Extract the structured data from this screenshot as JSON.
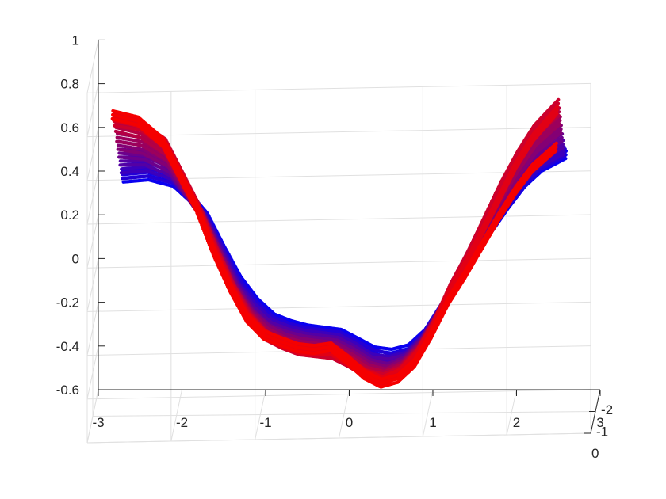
{
  "chart_data": {
    "type": "scatter",
    "title": "",
    "xlabel": "",
    "ylabel": "",
    "zlabel": "",
    "grid": true,
    "legend": "none",
    "xlim": [
      -3,
      3
    ],
    "ylim": [
      -2,
      0
    ],
    "zlim": [
      -0.6,
      1
    ],
    "x_ticks": [
      "-3",
      "-2",
      "-1",
      "0",
      "1",
      "2",
      "3"
    ],
    "y_ticks": [
      "0",
      "-1",
      "-2"
    ],
    "z_ticks": [
      "1",
      "0.8",
      "0.6",
      "0.4",
      "0.2",
      "0",
      "-0.2",
      "-0.4",
      "-0.6"
    ],
    "color_gradient": {
      "front": "#ff0000",
      "back": "#0000ff"
    },
    "series": [
      {
        "y": 0.0,
        "color": "#f50000",
        "x": [
          -2.7,
          -2.4,
          -2.1,
          -1.9,
          -1.7,
          -1.5,
          -1.3,
          -1.1,
          -0.9,
          -0.7,
          -0.5,
          -0.3,
          -0.1,
          0.1,
          0.3,
          0.5,
          0.7,
          0.9,
          1.1,
          1.3,
          1.5,
          1.7,
          1.9,
          2.1,
          2.3,
          2.6
        ],
        "z": [
          0.88,
          0.85,
          0.75,
          0.6,
          0.45,
          0.25,
          0.08,
          -0.06,
          -0.14,
          -0.17,
          -0.2,
          -0.21,
          -0.2,
          -0.26,
          -0.33,
          -0.37,
          -0.35,
          -0.28,
          -0.15,
          0.0,
          0.12,
          0.25,
          0.38,
          0.5,
          0.6,
          0.7
        ]
      },
      {
        "y": -0.2,
        "color": "#e20015",
        "x": [
          -2.7,
          -2.4,
          -2.1,
          -1.9,
          -1.7,
          -1.5,
          -1.3,
          -1.1,
          -0.9,
          -0.7,
          -0.5,
          -0.3,
          -0.1,
          0.1,
          0.3,
          0.5,
          0.7,
          0.9,
          1.1,
          1.3,
          1.5,
          1.7,
          1.9,
          2.1,
          2.3,
          2.6
        ],
        "z": [
          0.85,
          0.82,
          0.72,
          0.57,
          0.42,
          0.23,
          0.06,
          -0.08,
          -0.16,
          -0.2,
          -0.23,
          -0.24,
          -0.24,
          -0.29,
          -0.35,
          -0.38,
          -0.35,
          -0.27,
          -0.14,
          0.02,
          0.15,
          0.3,
          0.45,
          0.6,
          0.72,
          0.85
        ]
      },
      {
        "y": -0.4,
        "color": "#cc002c",
        "x": [
          -2.7,
          -2.4,
          -2.1,
          -1.9,
          -1.7,
          -1.5,
          -1.3,
          -1.1,
          -0.9,
          -0.7,
          -0.5,
          -0.3,
          -0.1,
          0.1,
          0.3,
          0.5,
          0.7,
          0.9,
          1.1,
          1.3,
          1.5,
          1.7,
          1.9,
          2.1,
          2.3,
          2.6
        ],
        "z": [
          0.8,
          0.78,
          0.7,
          0.55,
          0.4,
          0.21,
          0.04,
          -0.1,
          -0.19,
          -0.23,
          -0.26,
          -0.27,
          -0.28,
          -0.32,
          -0.37,
          -0.39,
          -0.36,
          -0.28,
          -0.15,
          0.02,
          0.16,
          0.32,
          0.48,
          0.62,
          0.74,
          0.86
        ]
      },
      {
        "y": -0.6,
        "color": "#b40044",
        "x": [
          -2.7,
          -2.4,
          -2.1,
          -1.9,
          -1.7,
          -1.5,
          -1.3,
          -1.1,
          -0.9,
          -0.7,
          -0.5,
          -0.3,
          -0.1,
          0.1,
          0.3,
          0.5,
          0.7,
          0.9,
          1.1,
          1.3,
          1.5,
          1.7,
          1.9,
          2.1,
          2.3,
          2.6
        ],
        "z": [
          0.75,
          0.72,
          0.64,
          0.5,
          0.36,
          0.18,
          0.01,
          -0.12,
          -0.21,
          -0.25,
          -0.27,
          -0.28,
          -0.29,
          -0.33,
          -0.38,
          -0.4,
          -0.37,
          -0.29,
          -0.16,
          0.0,
          0.15,
          0.3,
          0.44,
          0.58,
          0.7,
          0.8
        ]
      },
      {
        "y": -0.8,
        "color": "#9c005c",
        "x": [
          -2.7,
          -2.4,
          -2.1,
          -1.9,
          -1.7,
          -1.5,
          -1.3,
          -1.1,
          -0.9,
          -0.7,
          -0.5,
          -0.3,
          -0.1,
          0.1,
          0.3,
          0.5,
          0.7,
          0.9,
          1.1,
          1.3,
          1.5,
          1.7,
          1.9,
          2.1,
          2.3,
          2.6
        ],
        "z": [
          0.68,
          0.66,
          0.59,
          0.46,
          0.33,
          0.15,
          -0.02,
          -0.14,
          -0.22,
          -0.26,
          -0.28,
          -0.29,
          -0.3,
          -0.34,
          -0.39,
          -0.41,
          -0.38,
          -0.3,
          -0.17,
          -0.01,
          0.13,
          0.27,
          0.4,
          0.53,
          0.64,
          0.74
        ]
      },
      {
        "y": -1.0,
        "color": "#840074",
        "x": [
          -2.7,
          -2.4,
          -2.1,
          -1.9,
          -1.7,
          -1.5,
          -1.3,
          -1.1,
          -0.9,
          -0.7,
          -0.5,
          -0.3,
          -0.1,
          0.1,
          0.3,
          0.5,
          0.7,
          0.9,
          1.1,
          1.3,
          1.5,
          1.7,
          1.9,
          2.1,
          2.3,
          2.6
        ],
        "z": [
          0.62,
          0.6,
          0.54,
          0.42,
          0.3,
          0.13,
          -0.04,
          -0.16,
          -0.23,
          -0.27,
          -0.29,
          -0.3,
          -0.31,
          -0.35,
          -0.4,
          -0.42,
          -0.39,
          -0.31,
          -0.18,
          -0.03,
          0.1,
          0.24,
          0.37,
          0.49,
          0.59,
          0.68
        ]
      },
      {
        "y": -1.2,
        "color": "#6c008c",
        "x": [
          -2.7,
          -2.4,
          -2.1,
          -1.9,
          -1.7,
          -1.5,
          -1.3,
          -1.1,
          -0.9,
          -0.7,
          -0.5,
          -0.3,
          -0.1,
          0.1,
          0.3,
          0.5,
          0.7,
          0.9,
          1.1,
          1.3,
          1.5,
          1.7,
          1.9,
          2.1,
          2.3,
          2.6
        ],
        "z": [
          0.56,
          0.55,
          0.49,
          0.38,
          0.27,
          0.1,
          -0.06,
          -0.18,
          -0.25,
          -0.28,
          -0.3,
          -0.31,
          -0.32,
          -0.36,
          -0.41,
          -0.43,
          -0.4,
          -0.32,
          -0.19,
          -0.05,
          0.08,
          0.21,
          0.33,
          0.45,
          0.55,
          0.62
        ]
      },
      {
        "y": -1.4,
        "color": "#5400a4",
        "x": [
          -2.7,
          -2.4,
          -2.1,
          -1.9,
          -1.7,
          -1.5,
          -1.3,
          -1.1,
          -0.9,
          -0.7,
          -0.5,
          -0.3,
          -0.1,
          0.1,
          0.3,
          0.5,
          0.7,
          0.9,
          1.1,
          1.3,
          1.5,
          1.7,
          1.9,
          2.1,
          2.3,
          2.6
        ],
        "z": [
          0.5,
          0.5,
          0.45,
          0.35,
          0.24,
          0.08,
          -0.08,
          -0.19,
          -0.26,
          -0.29,
          -0.31,
          -0.32,
          -0.33,
          -0.37,
          -0.42,
          -0.43,
          -0.41,
          -0.33,
          -0.2,
          -0.07,
          0.06,
          0.18,
          0.3,
          0.41,
          0.5,
          0.57
        ]
      },
      {
        "y": -1.6,
        "color": "#3c00bc",
        "x": [
          -2.7,
          -2.4,
          -2.1,
          -1.9,
          -1.7,
          -1.5,
          -1.3,
          -1.1,
          -0.9,
          -0.7,
          -0.5,
          -0.3,
          -0.1,
          0.1,
          0.3,
          0.5,
          0.7,
          0.9,
          1.1,
          1.3,
          1.5,
          1.7,
          1.9,
          2.1,
          2.3,
          2.6
        ],
        "z": [
          0.44,
          0.45,
          0.41,
          0.32,
          0.21,
          0.06,
          -0.1,
          -0.2,
          -0.27,
          -0.3,
          -0.32,
          -0.33,
          -0.34,
          -0.38,
          -0.43,
          -0.44,
          -0.42,
          -0.34,
          -0.22,
          -0.09,
          0.04,
          0.16,
          0.27,
          0.38,
          0.46,
          0.52
        ]
      },
      {
        "y": -1.8,
        "color": "#2400d4",
        "x": [
          -2.7,
          -2.4,
          -2.1,
          -1.9,
          -1.7,
          -1.5,
          -1.3,
          -1.1,
          -0.9,
          -0.7,
          -0.5,
          -0.3,
          -0.1,
          0.1,
          0.3,
          0.5,
          0.7,
          0.9,
          1.1,
          1.3,
          1.5,
          1.7,
          1.9,
          2.1,
          2.3,
          2.6
        ],
        "z": [
          0.39,
          0.4,
          0.37,
          0.29,
          0.19,
          0.04,
          -0.11,
          -0.21,
          -0.28,
          -0.31,
          -0.33,
          -0.34,
          -0.35,
          -0.39,
          -0.43,
          -0.45,
          -0.43,
          -0.35,
          -0.23,
          -0.1,
          0.02,
          0.14,
          0.25,
          0.35,
          0.43,
          0.49
        ]
      },
      {
        "y": -2.0,
        "color": "#0a00f0",
        "x": [
          -2.7,
          -2.4,
          -2.1,
          -1.9,
          -1.7,
          -1.5,
          -1.3,
          -1.1,
          -0.9,
          -0.7,
          -0.5,
          -0.3,
          -0.1,
          0.1,
          0.3,
          0.5,
          0.7,
          0.9,
          1.1,
          1.3,
          1.5,
          1.7,
          1.9,
          2.1,
          2.3,
          2.6
        ],
        "z": [
          0.35,
          0.36,
          0.33,
          0.26,
          0.17,
          0.02,
          -0.12,
          -0.22,
          -0.29,
          -0.32,
          -0.34,
          -0.35,
          -0.36,
          -0.4,
          -0.44,
          -0.45,
          -0.43,
          -0.36,
          -0.24,
          -0.11,
          0.01,
          0.12,
          0.23,
          0.33,
          0.4,
          0.46
        ]
      }
    ]
  }
}
